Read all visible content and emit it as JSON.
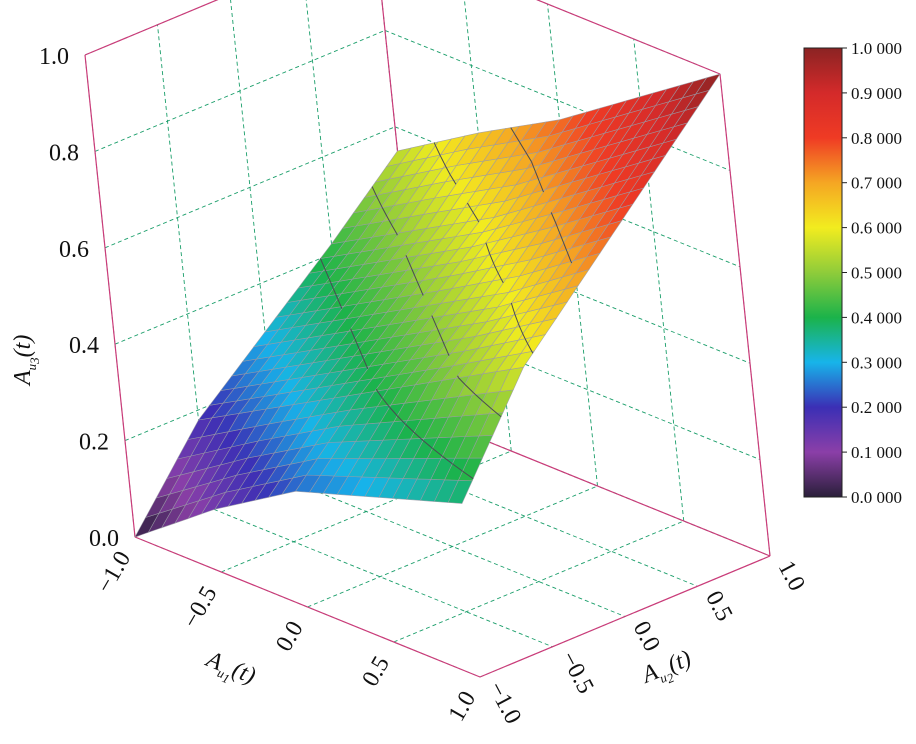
{
  "chart_data": {
    "type": "surface3d",
    "x_axis": {
      "label": "A",
      "sub": "u",
      "subsub": "1",
      "tail": "(t)",
      "range": [
        -1.0,
        1.0
      ],
      "ticks": [
        "−1.0",
        "−0.5",
        "0.0",
        "0.5",
        "1.0"
      ]
    },
    "y_axis": {
      "label": "A",
      "sub": "u",
      "subsub": "2",
      "tail": "(t)",
      "range": [
        -1.0,
        1.0
      ],
      "ticks": [
        "−1.0",
        "−0.5",
        "0.0",
        "0.5",
        "1.0"
      ]
    },
    "z_axis": {
      "label": "A",
      "sub": "u",
      "subsub": "3",
      "tail": "(t)",
      "range": [
        0.0,
        1.0
      ],
      "ticks": [
        "0.0",
        "0.2",
        "0.4",
        "0.6",
        "0.8",
        "1.0"
      ]
    },
    "colorbar": {
      "range": [
        0.0,
        1.0
      ],
      "ticks": [
        "0.0 000",
        "0.1 000",
        "0.2 000",
        "0.3 000",
        "0.4 000",
        "0.5 000",
        "0.6 000",
        "0.7 000",
        "0.8 000",
        "0.9 000",
        "1.0 000"
      ],
      "colors": [
        "#2a1f3a",
        "#8b3fa8",
        "#3b2fb5",
        "#17b4ea",
        "#1bb34a",
        "#8fcc3a",
        "#f2ec1f",
        "#f5a623",
        "#ef3b24",
        "#d42a2a",
        "#8b2323"
      ]
    },
    "grid": true,
    "surface": {
      "x": [
        -1.0,
        -0.5,
        0.0,
        0.5,
        1.0
      ],
      "y": [
        -1.0,
        -0.5,
        0.0,
        0.5,
        1.0
      ],
      "z": [
        [
          0.0,
          0.18,
          0.3,
          0.42,
          0.55
        ],
        [
          0.13,
          0.28,
          0.4,
          0.52,
          0.66
        ],
        [
          0.24,
          0.38,
          0.5,
          0.62,
          0.76
        ],
        [
          0.3,
          0.48,
          0.6,
          0.74,
          0.88
        ],
        [
          0.36,
          0.58,
          0.72,
          0.86,
          1.0
        ]
      ],
      "contour_levels": [
        0.4,
        0.5,
        0.6,
        0.7
      ]
    }
  }
}
